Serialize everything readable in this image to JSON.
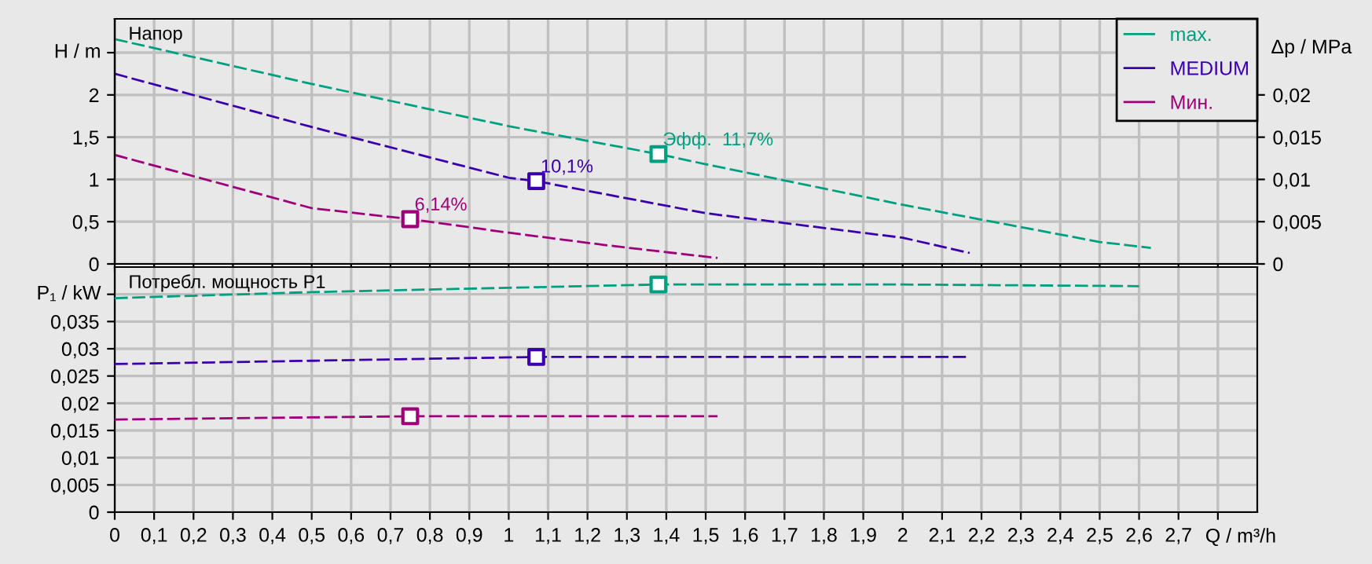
{
  "chart_data": [
    {
      "type": "line",
      "ylabel": "H / m",
      "y2label": "Δp / MPa",
      "line_style": "dashed",
      "grid": true,
      "legend": "top right",
      "tick_labels": "y",
      "xlim": [
        0,
        2.9
      ],
      "ylim": [
        0,
        2.9
      ],
      "y2lim": [
        0,
        0.029
      ],
      "xticks": [
        0,
        0.1,
        0.2,
        0.3,
        0.4,
        0.5,
        0.6,
        0.7,
        0.8,
        0.9,
        1,
        1.1,
        1.2,
        1.3,
        1.4,
        1.5,
        1.6,
        1.7,
        1.8,
        1.9,
        2,
        2.1,
        2.2,
        2.3,
        2.4,
        2.5,
        2.6,
        2.7,
        2.8
      ],
      "yticks": [
        0,
        {
          "value": 0.5,
          "label": "0,5"
        },
        1,
        {
          "value": 1.5,
          "label": "1,5"
        },
        2,
        {
          "value": 2.5,
          "label": null
        }
      ],
      "y2ticks": [
        0,
        {
          "value": 0.005,
          "label": "0,005"
        },
        {
          "value": 0.01,
          "label": "0,01"
        },
        {
          "value": 0.015,
          "label": "0,015"
        },
        {
          "value": 0.02,
          "label": "0,02"
        }
      ],
      "annotations": [
        "Напор",
        {
          "text": "Эфф.  11,7%",
          "x": 1.38,
          "y": 1.3
        },
        {
          "text": "10,1%",
          "x": 1.07,
          "y": 0.98
        },
        {
          "text": "6,14%",
          "x": 0.75,
          "y": 0.53
        }
      ],
      "series": [
        {
          "name": "max.",
          "color": "#00a080",
          "x": [
            0,
            0.5,
            1.0,
            1.38,
            1.5,
            2.0,
            2.5,
            2.63
          ],
          "values": [
            2.66,
            2.13,
            1.63,
            1.3,
            1.18,
            0.7,
            0.26,
            0.19
          ]
        },
        {
          "name": "MEDIUM",
          "color": "#3a00b0",
          "x": [
            0,
            0.5,
            1.0,
            1.07,
            1.5,
            2.0,
            2.17
          ],
          "values": [
            2.25,
            1.62,
            1.02,
            0.98,
            0.6,
            0.31,
            0.13
          ]
        },
        {
          "name": "Мин.",
          "color": "#a0007a",
          "x": [
            0,
            0.5,
            0.75,
            1.0,
            1.25,
            1.53
          ],
          "values": [
            1.29,
            0.66,
            0.53,
            0.37,
            0.22,
            0.07
          ]
        },
        {
          "type": "scatter",
          "marker": "square",
          "color": "#00a080",
          "x": [
            1.38
          ],
          "values": [
            1.3
          ]
        },
        {
          "type": "scatter",
          "marker": "square",
          "color": "#3a00b0",
          "x": [
            1.07
          ],
          "values": [
            0.98
          ]
        },
        {
          "type": "scatter",
          "marker": "square",
          "color": "#a0007a",
          "x": [
            0.75
          ],
          "values": [
            0.53
          ]
        }
      ]
    },
    {
      "type": "line",
      "ylabel": "P₁ / kW",
      "xlabel": "Q / m³/h",
      "line_style": "dashed",
      "grid": true,
      "xlim": [
        0,
        2.9
      ],
      "ylim": [
        0,
        0.045
      ],
      "xticks": [
        0,
        {
          "value": 0.1,
          "label": "0,1"
        },
        {
          "value": 0.2,
          "label": "0,2"
        },
        {
          "value": 0.3,
          "label": "0,3"
        },
        {
          "value": 0.4,
          "label": "0,4"
        },
        {
          "value": 0.5,
          "label": "0,5"
        },
        {
          "value": 0.6,
          "label": "0,6"
        },
        {
          "value": 0.7,
          "label": "0,7"
        },
        {
          "value": 0.8,
          "label": "0,8"
        },
        {
          "value": 0.9,
          "label": "0,9"
        },
        1,
        {
          "value": 1.1,
          "label": "1,1"
        },
        {
          "value": 1.2,
          "label": "1,2"
        },
        {
          "value": 1.3,
          "label": "1,3"
        },
        {
          "value": 1.4,
          "label": "1,4"
        },
        {
          "value": 1.5,
          "label": "1,5"
        },
        {
          "value": 1.6,
          "label": "1,6"
        },
        {
          "value": 1.7,
          "label": "1,7"
        },
        {
          "value": 1.8,
          "label": "1,8"
        },
        {
          "value": 1.9,
          "label": "1,9"
        },
        2,
        {
          "value": 2.1,
          "label": "2,1"
        },
        {
          "value": 2.2,
          "label": "2,2"
        },
        {
          "value": 2.3,
          "label": "2,3"
        },
        {
          "value": 2.4,
          "label": "2,4"
        },
        {
          "value": 2.5,
          "label": "2,5"
        },
        {
          "value": 2.6,
          "label": "2,6"
        },
        {
          "value": 2.7,
          "label": "2,7"
        },
        {
          "value": 2.8,
          "label": null
        }
      ],
      "yticks": [
        0,
        {
          "value": 0.005,
          "label": "0,005"
        },
        {
          "value": 0.01,
          "label": "0,01"
        },
        {
          "value": 0.015,
          "label": "0,015"
        },
        {
          "value": 0.02,
          "label": "0,02"
        },
        {
          "value": 0.025,
          "label": "0,025"
        },
        {
          "value": 0.03,
          "label": "0,03"
        },
        {
          "value": 0.035,
          "label": "0,035"
        },
        {
          "value": 0.04,
          "label": null
        }
      ],
      "annotations": [
        "Потребл. мощность P1"
      ],
      "series": [
        {
          "color": "#00a080",
          "x": [
            0,
            0.5,
            1.0,
            1.38,
            2.0,
            2.6
          ],
          "values": [
            0.0393,
            0.0404,
            0.0412,
            0.0418,
            0.0418,
            0.0415
          ]
        },
        {
          "color": "#3a00b0",
          "x": [
            0,
            0.5,
            1.07,
            2.17
          ],
          "values": [
            0.0272,
            0.0278,
            0.0285,
            0.0285
          ]
        },
        {
          "color": "#a0007a",
          "x": [
            0,
            0.75,
            1.53
          ],
          "values": [
            0.017,
            0.0176,
            0.0176
          ]
        },
        {
          "type": "scatter",
          "marker": "square",
          "color": "#00a080",
          "x": [
            1.38
          ],
          "values": [
            0.0418
          ]
        },
        {
          "type": "scatter",
          "marker": "square",
          "color": "#3a00b0",
          "x": [
            1.07
          ],
          "values": [
            0.0285
          ]
        },
        {
          "type": "scatter",
          "marker": "square",
          "color": "#a0007a",
          "x": [
            0.75
          ],
          "values": [
            0.0176
          ]
        }
      ]
    }
  ]
}
